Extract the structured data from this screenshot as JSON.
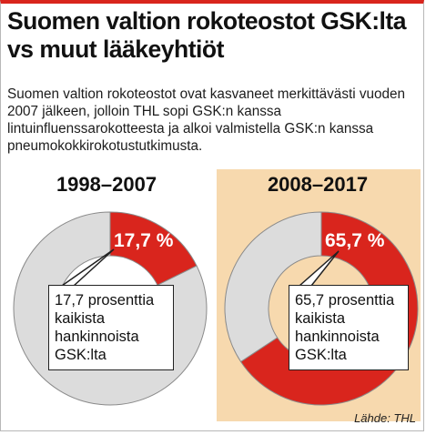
{
  "title": "Suomen valtion rokoteostot GSK:lta vs muut lääkeyhtiöt",
  "intro": "Suomen valtion rokoteostot ovat kasvaneet merkittävästi vuoden 2007 jälkeen, jolloin THL sopi GSK:n kanssa lintuinfluenssarokotteesta ja alkoi valmistella GSK:n kanssa pneumokokkirokotustutkimusta.",
  "source": "Lähde: THL",
  "colors": {
    "accent": "#d9251d",
    "rest": "#dcdcdc",
    "highlight_bg": "#f7d9ae"
  },
  "chart_data": [
    {
      "type": "pie",
      "title": "1998–2007",
      "slices": [
        {
          "label": "GSK",
          "value": 17.7,
          "color": "#d9251d"
        },
        {
          "label": "",
          "value": 82.3,
          "color": "#dcdcdc"
        }
      ],
      "value_label": "17,7 %",
      "annotation": "17,7 prosenttia kaikista hankinnoista GSK:lta"
    },
    {
      "type": "pie",
      "title": "2008–2017",
      "slices": [
        {
          "label": "GSK",
          "value": 65.7,
          "color": "#d9251d"
        },
        {
          "label": "",
          "value": 34.3,
          "color": "#dcdcdc"
        }
      ],
      "value_label": "65,7 %",
      "annotation": "65,7 prosenttia kaikista hankinnoista GSK:lta"
    }
  ]
}
